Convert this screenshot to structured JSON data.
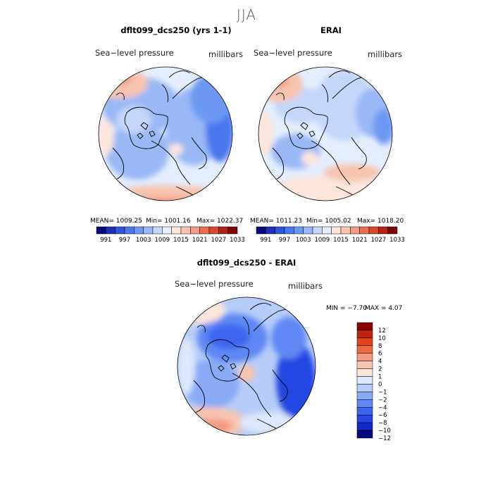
{
  "title": "JJA",
  "panels": [
    {
      "title": "dflt099_dcs250 (yrs 1-1)",
      "field_label": "Sea−level pressure",
      "units": "millibars",
      "stats": {
        "mean": "MEAN= 1009.25",
        "min": "Min= 1001.16",
        "max": "Max= 1022.37"
      }
    },
    {
      "title": "ERAI",
      "field_label": "Sea−level pressure",
      "units": "millibars",
      "stats": {
        "mean": "MEAN= 1011.23",
        "min": "Min= 1005.02",
        "max": "Max= 1018.20"
      }
    },
    {
      "title": "dflt099_dcs250 - ERAI",
      "field_label": "Sea−level pressure",
      "units": "millibars",
      "stats": {
        "min": "MIN =   −7.70",
        "max": "MAX =    4.07"
      }
    }
  ],
  "colors": {
    "abs_scale": [
      "#08087a",
      "#1e2fb4",
      "#2f55d8",
      "#4a78ec",
      "#6d98f2",
      "#9ab8f6",
      "#c4d6fa",
      "#e4eefd",
      "#fde6dc",
      "#f7c4b0",
      "#f19c84",
      "#e8724f",
      "#d64a2a",
      "#b22414",
      "#7a0606"
    ],
    "diff_scale": [
      "#08087a",
      "#1228c8",
      "#2446e2",
      "#3c66f0",
      "#5f88f4",
      "#8aaaf6",
      "#b6ccf9",
      "#dde8fc",
      "#fde6dc",
      "#f7c4b0",
      "#f39a82",
      "#ee6a43",
      "#e0441e",
      "#c2220c",
      "#8a0404"
    ]
  },
  "chart_data": [
    {
      "type": "heatmap",
      "title": "dflt099_dcs250 (yrs 1-1)",
      "field": "Sea-level pressure",
      "units": "millibars",
      "season": "JJA",
      "mean": 1009.25,
      "min": 1001.16,
      "max": 1022.37,
      "colorbar_ticks": [
        "991",
        "997",
        "1003",
        "1009",
        "1015",
        "1021",
        "1027",
        "1033"
      ],
      "colorbar_range": [
        988,
        1036
      ]
    },
    {
      "type": "heatmap",
      "title": "ERAI",
      "field": "Sea-level pressure",
      "units": "millibars",
      "season": "JJA",
      "mean": 1011.23,
      "min": 1005.02,
      "max": 1018.2,
      "colorbar_ticks": [
        "991",
        "997",
        "1003",
        "1009",
        "1015",
        "1021",
        "1027",
        "1033"
      ],
      "colorbar_range": [
        988,
        1036
      ]
    },
    {
      "type": "heatmap",
      "title": "dflt099_dcs250 - ERAI",
      "field": "Sea-level pressure",
      "units": "millibars",
      "season": "JJA",
      "min": -7.7,
      "max": 4.07,
      "colorbar_ticks": [
        "12",
        "10",
        "8",
        "6",
        "4",
        "2",
        "1",
        "0",
        "−1",
        "−2",
        "−4",
        "−6",
        "−8",
        "−10",
        "−12"
      ],
      "colorbar_range": [
        -14,
        14
      ]
    }
  ]
}
